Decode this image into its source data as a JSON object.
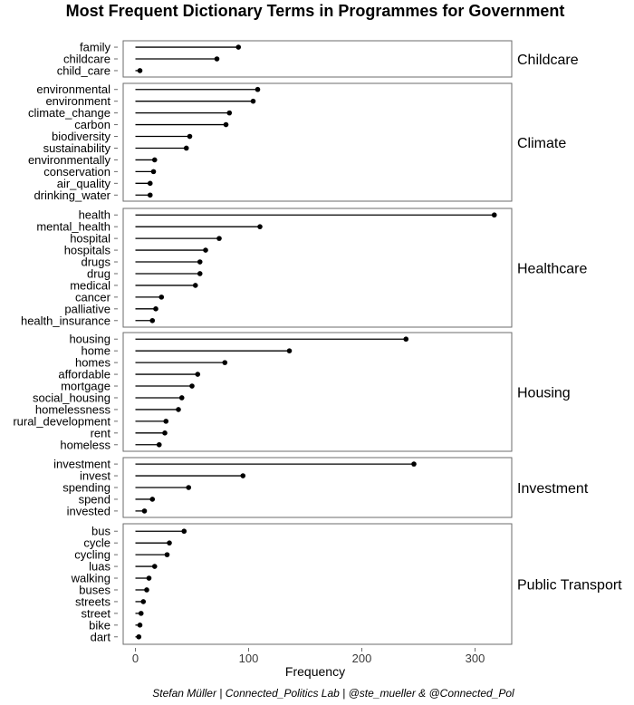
{
  "chart_data": {
    "type": "lollipop",
    "title": "Most Frequent Dictionary Terms in Programmes for Government",
    "xlabel": "Frequency",
    "xlim": [
      -12,
      332
    ],
    "xticks": [
      0,
      100,
      200,
      300
    ],
    "caption": "Stefan Müller | Connected_Politics Lab | @ste_mueller & @Connected_Pol",
    "panels": [
      {
        "name": "Childcare",
        "terms": [
          "family",
          "childcare",
          "child_care"
        ],
        "values": [
          91,
          72,
          4
        ]
      },
      {
        "name": "Climate",
        "terms": [
          "environmental",
          "environment",
          "climate_change",
          "carbon",
          "biodiversity",
          "sustainability",
          "environmentally",
          "conservation",
          "air_quality",
          "drinking_water"
        ],
        "values": [
          108,
          104,
          83,
          80,
          48,
          45,
          17,
          16,
          13,
          13
        ]
      },
      {
        "name": "Healthcare",
        "terms": [
          "health",
          "mental_health",
          "hospital",
          "hospitals",
          "drugs",
          "drug",
          "medical",
          "cancer",
          "palliative",
          "health_insurance"
        ],
        "values": [
          317,
          110,
          74,
          62,
          57,
          57,
          53,
          23,
          18,
          15
        ]
      },
      {
        "name": "Housing",
        "terms": [
          "housing",
          "home",
          "homes",
          "affordable",
          "mortgage",
          "social_housing",
          "homelessness",
          "rural_development",
          "rent",
          "homeless"
        ],
        "values": [
          239,
          136,
          79,
          55,
          50,
          41,
          38,
          27,
          26,
          21
        ]
      },
      {
        "name": "Investment",
        "terms": [
          "investment",
          "invest",
          "spending",
          "spend",
          "invested"
        ],
        "values": [
          246,
          95,
          47,
          15,
          8
        ]
      },
      {
        "name": "Public Transport",
        "terms": [
          "bus",
          "cycle",
          "cycling",
          "luas",
          "walking",
          "buses",
          "streets",
          "street",
          "bike",
          "dart"
        ],
        "values": [
          43,
          30,
          28,
          17,
          12,
          10,
          7,
          5,
          4,
          3
        ]
      }
    ]
  }
}
